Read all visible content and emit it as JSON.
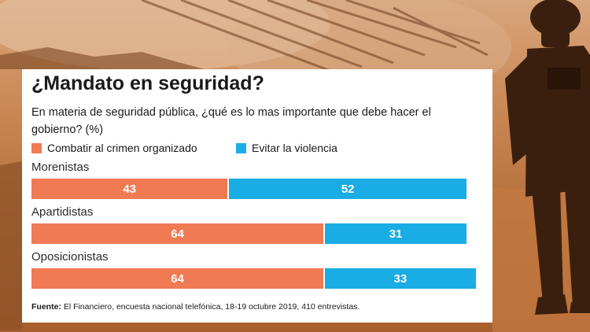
{
  "title": "¿Mandato en seguridad?",
  "subtitle": "En materia de seguridad pública, ¿qué es lo mas importante que debe hacer el gobierno? (%)",
  "legend": [
    {
      "label": "Combatir al crimen organizado",
      "color": "#f07a53"
    },
    {
      "label": "Evitar la violencia",
      "color": "#1aace4"
    }
  ],
  "source": {
    "label": "Fuente:",
    "text": "El Financiero, encuesta nacional telefónica, 18-19 octubre 2019, 410 entrevistas."
  },
  "chart_data": {
    "type": "bar",
    "orientation": "horizontal",
    "stacked": true,
    "categories": [
      "Morenistas",
      "Apartidistas",
      "Oposicionistas"
    ],
    "series": [
      {
        "name": "Combatir al crimen organizado",
        "values": [
          43,
          64,
          64
        ],
        "color": "#f07a53"
      },
      {
        "name": "Evitar la violencia",
        "values": [
          52,
          31,
          33
        ],
        "color": "#1aace4"
      }
    ],
    "unit": "%",
    "title": "¿Mandato en seguridad?",
    "xlabel": "",
    "ylabel": ""
  }
}
